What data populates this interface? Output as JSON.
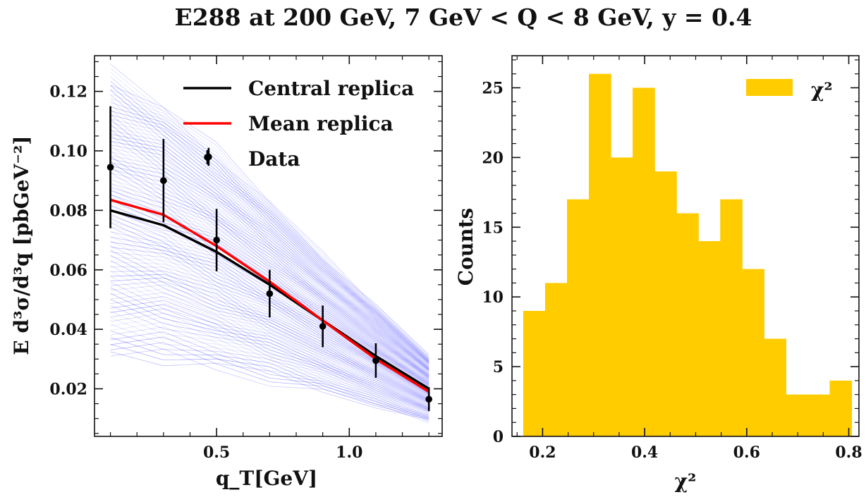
{
  "figure": {
    "title": "E288 at 200 GeV, 7 GeV < Q < 8 GeV, y = 0.4"
  },
  "chart_data": [
    {
      "type": "line",
      "xlabel": "q_T[GeV]",
      "ylabel": "E d³σ/d³q [pbGeV⁻²]",
      "xlim": [
        0.04,
        1.35
      ],
      "ylim": [
        0.004,
        0.132
      ],
      "xticks": [
        0.5,
        1.0
      ],
      "xtick_labels": [
        "0.5",
        "1.0"
      ],
      "yticks": [
        0.02,
        0.04,
        0.06,
        0.08,
        0.1,
        0.12
      ],
      "ytick_labels": [
        "0.02",
        "0.04",
        "0.06",
        "0.08",
        "0.10",
        "0.12"
      ],
      "legend": {
        "placement": "top-right",
        "entries": [
          "Central replica",
          "Mean replica",
          "Data"
        ]
      },
      "x": [
        0.1,
        0.3,
        0.5,
        0.7,
        0.9,
        1.1,
        1.3
      ],
      "series": [
        {
          "name": "Central replica",
          "color": "#000000",
          "values": [
            0.08,
            0.075,
            0.066,
            0.055,
            0.043,
            0.031,
            0.02
          ]
        },
        {
          "name": "Mean replica",
          "color": "#ff0000",
          "values": [
            0.0835,
            0.0785,
            0.068,
            0.056,
            0.043,
            0.03,
            0.019
          ]
        }
      ],
      "replicas": {
        "color": "#0000ff",
        "count": 120,
        "top": [
          0.126,
          0.115,
          0.1,
          0.083,
          0.065,
          0.048,
          0.031
        ],
        "bottom": [
          0.031,
          0.03,
          0.027,
          0.023,
          0.019,
          0.014,
          0.009
        ]
      },
      "data_points": {
        "name": "Data",
        "color": "#000000",
        "points": [
          {
            "x": 0.1,
            "y": 0.0945,
            "err": 0.0205
          },
          {
            "x": 0.3,
            "y": 0.09,
            "err": 0.014
          },
          {
            "x": 0.47,
            "y": 0.098,
            "err": 0.003
          },
          {
            "x": 0.5,
            "y": 0.07,
            "err": 0.0105
          },
          {
            "x": 0.7,
            "y": 0.052,
            "err": 0.008
          },
          {
            "x": 0.9,
            "y": 0.041,
            "err": 0.007
          },
          {
            "x": 1.1,
            "y": 0.0295,
            "err": 0.0058
          },
          {
            "x": 1.3,
            "y": 0.0165,
            "err": 0.004
          }
        ]
      }
    },
    {
      "type": "bar",
      "xlabel": "χ²",
      "ylabel": "Counts",
      "xlim": [
        0.14,
        0.82
      ],
      "ylim": [
        0,
        27.3
      ],
      "xticks": [
        0.2,
        0.4,
        0.6,
        0.8
      ],
      "xtick_labels": [
        "0.2",
        "0.4",
        "0.6",
        "0.8"
      ],
      "yticks": [
        0,
        5,
        10,
        15,
        20,
        25
      ],
      "ytick_labels": [
        "0",
        "5",
        "10",
        "15",
        "20",
        "25"
      ],
      "legend": {
        "placement": "top-right",
        "entries": [
          "χ²"
        ]
      },
      "color": "#ffcc00",
      "bin_start": 0.162,
      "bin_width": 0.0429,
      "values": [
        9,
        11,
        17,
        26,
        20,
        25,
        19,
        16,
        14,
        17,
        12,
        7,
        3,
        3,
        4
      ]
    }
  ]
}
